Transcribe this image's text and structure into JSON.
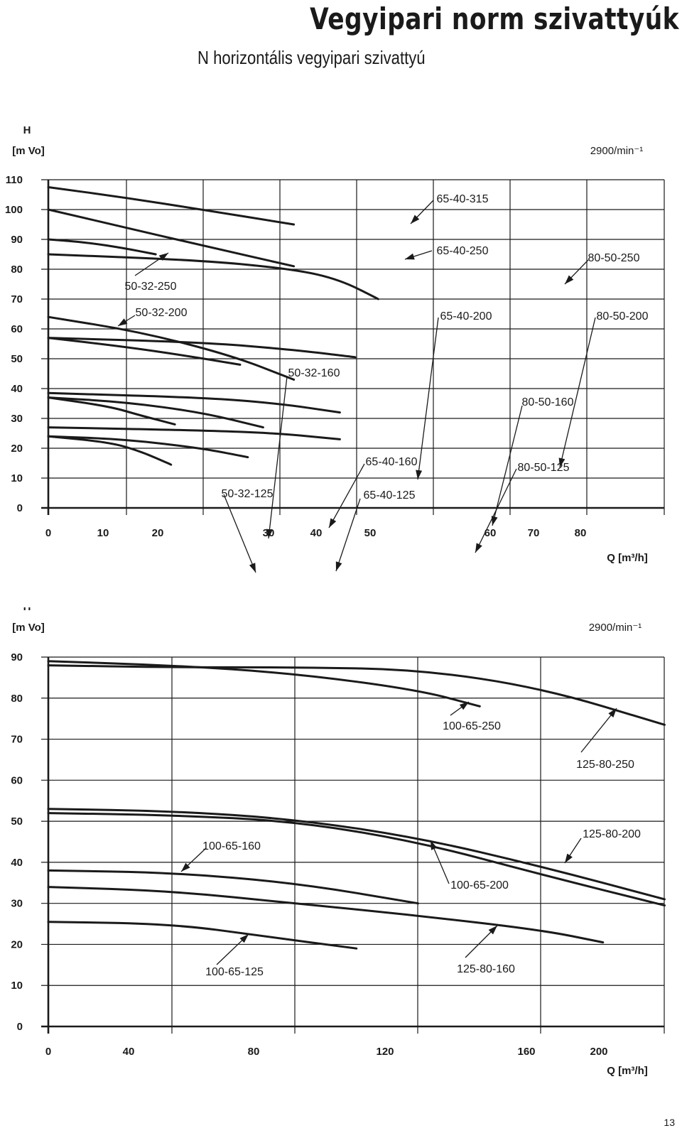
{
  "page": {
    "title": "Vegyipari norm szivattyúk",
    "subtitle": "N horizontális vegyipari szivattyú",
    "page_number": "13"
  },
  "chart_data": [
    {
      "type": "line",
      "ylabel_top": "H",
      "ylabel": "[m Vo]",
      "xlabel": "Q [m³/h]",
      "speed": "2900/min⁻¹",
      "ylim": [
        0,
        110
      ],
      "y_ticks": [
        "0",
        "10",
        "20",
        "30",
        "40",
        "50",
        "60",
        "70",
        "80",
        "90",
        "100",
        "110"
      ],
      "x_ticks": [
        "0",
        "10",
        "20",
        "30",
        "40",
        "50",
        "60",
        "70",
        "80"
      ],
      "grid": true,
      "series": [
        {
          "name": "50-32-125",
          "x": [
            0,
            8,
            12,
            16
          ],
          "y": [
            24,
            22,
            19,
            14.5
          ]
        },
        {
          "name": "50-32-160",
          "x": [
            0,
            8,
            12,
            16.5
          ],
          "y": [
            37,
            34,
            31,
            28
          ]
        },
        {
          "name": "50-32-200",
          "x": [
            0,
            10,
            18,
            25
          ],
          "y": [
            57,
            54,
            51,
            48
          ]
        },
        {
          "name": "50-32-250",
          "x": [
            0,
            5,
            10,
            14
          ],
          "y": [
            90,
            89,
            87,
            85
          ]
        },
        {
          "name": "65-40-125",
          "x": [
            0,
            10,
            20,
            26
          ],
          "y": [
            24,
            23,
            20,
            17
          ]
        },
        {
          "name": "65-40-160",
          "x": [
            0,
            10,
            20,
            28
          ],
          "y": [
            37,
            35.5,
            32,
            27
          ]
        },
        {
          "name": "65-40-200",
          "x": [
            0,
            12,
            24,
            32
          ],
          "y": [
            64,
            59,
            51,
            43
          ]
        },
        {
          "name": "65-40-250",
          "x": [
            0,
            10,
            20,
            32
          ],
          "y": [
            100,
            94,
            88,
            81
          ]
        },
        {
          "name": "65-40-315",
          "x": [
            0,
            10,
            20,
            32
          ],
          "y": [
            107.5,
            104,
            100,
            95
          ]
        },
        {
          "name": "80-50-125",
          "x": [
            0,
            20,
            30,
            38
          ],
          "y": [
            27,
            26,
            25,
            23
          ]
        },
        {
          "name": "80-50-160",
          "x": [
            0,
            20,
            30,
            38
          ],
          "y": [
            38.5,
            37,
            35,
            32
          ]
        },
        {
          "name": "80-50-200",
          "x": [
            0,
            20,
            32,
            40
          ],
          "y": [
            57,
            55.5,
            53,
            50.5
          ]
        },
        {
          "name": "80-50-250",
          "x": [
            0,
            20,
            32,
            38,
            43
          ],
          "y": [
            85,
            83,
            80,
            76.5,
            70
          ]
        }
      ],
      "labels": [
        "65-40-315",
        "65-40-250",
        "80-50-250",
        "50-32-250",
        "50-32-200",
        "65-40-200",
        "80-50-200",
        "50-32-160",
        "80-50-160",
        "65-40-160",
        "80-50-125",
        "50-32-125",
        "65-40-125"
      ]
    },
    {
      "type": "line",
      "ylabel_top": "H",
      "ylabel": "[m Vo]",
      "xlabel": "Q [m³/h]",
      "speed": "2900/min⁻¹",
      "ylim": [
        0,
        90
      ],
      "y_ticks": [
        "0",
        "10",
        "20",
        "30",
        "40",
        "50",
        "60",
        "70",
        "80",
        "90"
      ],
      "x_ticks": [
        "0",
        "40",
        "80",
        "120",
        "160",
        "200"
      ],
      "grid": true,
      "series": [
        {
          "name": "100-65-125",
          "x": [
            0,
            40,
            70,
            100
          ],
          "y": [
            25.5,
            25,
            22,
            19
          ]
        },
        {
          "name": "100-65-160",
          "x": [
            0,
            40,
            80,
            120
          ],
          "y": [
            38,
            37.5,
            35,
            30
          ]
        },
        {
          "name": "100-65-200",
          "x": [
            0,
            40,
            80,
            120,
            160,
            200
          ],
          "y": [
            52,
            51.5,
            50,
            45,
            37,
            29.5
          ]
        },
        {
          "name": "100-65-250",
          "x": [
            0,
            40,
            80,
            120,
            140
          ],
          "y": [
            89,
            88,
            86,
            82,
            78
          ]
        },
        {
          "name": "125-80-160",
          "x": [
            0,
            40,
            80,
            120,
            160,
            180
          ],
          "y": [
            34,
            33,
            30,
            27,
            23.5,
            20.5
          ]
        },
        {
          "name": "125-80-200",
          "x": [
            0,
            40,
            80,
            120,
            160,
            200
          ],
          "y": [
            53,
            52.5,
            50.5,
            46,
            39,
            31
          ]
        },
        {
          "name": "125-80-250",
          "x": [
            0,
            40,
            80,
            120,
            160,
            200
          ],
          "y": [
            88,
            87.5,
            87.5,
            87,
            82.5,
            73.5
          ]
        }
      ],
      "labels": [
        "100-65-250",
        "125-80-250",
        "100-65-160",
        "125-80-200",
        "100-65-200",
        "100-65-125",
        "125-80-160"
      ]
    }
  ]
}
